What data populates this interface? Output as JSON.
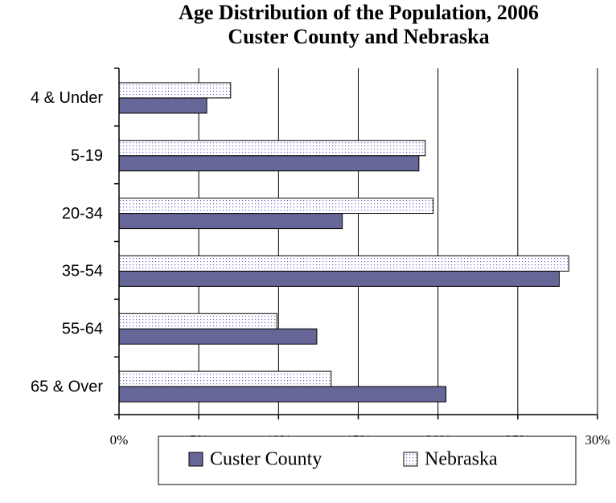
{
  "chart_data": {
    "type": "barh",
    "title": [
      "Age Distribution of the Population, 2006",
      "Custer County and Nebraska"
    ],
    "categories": [
      "4 & Under",
      "5-19",
      "20-34",
      "35-54",
      "55-64",
      "65 & Over"
    ],
    "series": [
      {
        "name": "Custer County",
        "color": "#666699",
        "values": [
          5.5,
          18.8,
          14.0,
          27.6,
          12.4,
          20.5
        ]
      },
      {
        "name": "Nebraska",
        "color": "#6666cc",
        "pattern": "dots",
        "values": [
          7.0,
          19.2,
          19.7,
          28.2,
          9.9,
          13.3
        ]
      }
    ],
    "xlim": [
      0,
      30
    ],
    "xticks": [
      {
        "value": 0,
        "label": "0%"
      },
      {
        "value": 5,
        "label": "5%"
      },
      {
        "value": 10,
        "label": "10%"
      },
      {
        "value": 15,
        "label": "15%"
      },
      {
        "value": 20,
        "label": "20%"
      },
      {
        "value": 25,
        "label": "25%"
      },
      {
        "value": 30,
        "label": "30%"
      }
    ],
    "grid": true,
    "legend": "bottom"
  }
}
